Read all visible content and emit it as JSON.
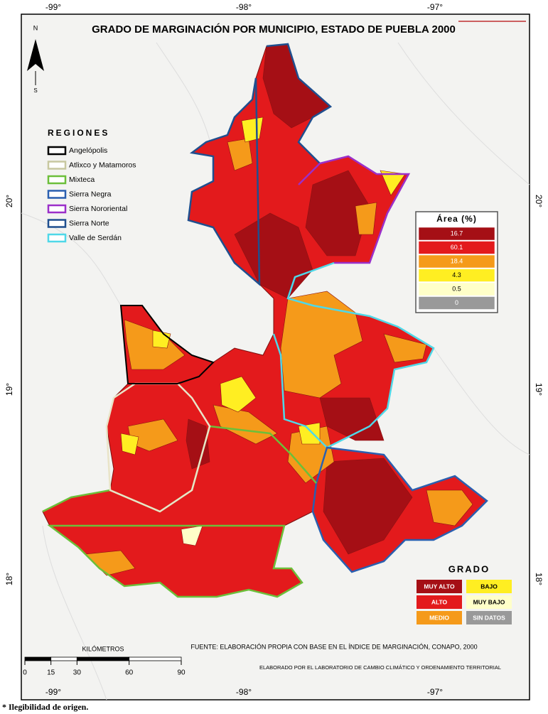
{
  "title": "GRADO DE MARGINACIÓN POR MUNICIPIO, ESTADO DE PUEBLA 2000",
  "compass": {
    "north": "N",
    "south": "S"
  },
  "longitude_labels": [
    "-99°",
    "-98°",
    "-97°"
  ],
  "latitude_labels": [
    "20°",
    "19°",
    "18°"
  ],
  "regions": {
    "title": "REGIONES",
    "items": [
      {
        "label": "Angelópolis",
        "color": "#000000"
      },
      {
        "label": "Atlixco y Matamoros",
        "color": "#c8c8a0"
      },
      {
        "label": "Mixteca",
        "color": "#6cbf3a"
      },
      {
        "label": "Sierra Negra",
        "color": "#2a5fb0"
      },
      {
        "label": "Sierra Nororiental",
        "color": "#9b2fc9"
      },
      {
        "label": "Sierra Norte",
        "color": "#1f4f8f"
      },
      {
        "label": "Valle de Serdán",
        "color": "#4fd8e8"
      }
    ]
  },
  "area_table": {
    "header": "Área (%)",
    "rows": [
      {
        "value": 16.7,
        "color": "#a50f15"
      },
      {
        "value": 60.1,
        "color": "#e31a1c"
      },
      {
        "value": 18.4,
        "color": "#f59a1a"
      },
      {
        "value": 4.3,
        "color": "#ffee22"
      },
      {
        "value": 0.5,
        "color": "#ffffc8"
      },
      {
        "value": 0,
        "color": "#999999"
      }
    ]
  },
  "grado": {
    "title": "GRADO",
    "items": [
      {
        "label": "MUY ALTO",
        "color": "#a50f15"
      },
      {
        "label": "BAJO",
        "color": "#ffee22"
      },
      {
        "label": "ALTO",
        "color": "#e31a1c"
      },
      {
        "label": "MUY BAJO",
        "color": "#ffffc8"
      },
      {
        "label": "MEDIO",
        "color": "#f59a1a"
      },
      {
        "label": "SIN DATOS",
        "color": "#999999"
      }
    ]
  },
  "scale_bar": {
    "title": "KILÓMETROS",
    "ticks": [
      0,
      15,
      30,
      60,
      90
    ]
  },
  "source": "FUENTE: ELABORACIÓN PROPIA CON BASE EN EL ÍNDICE DE MARGINACIÓN, CONAPO, 2000",
  "credit": "ELABORADO POR EL LABORATORIO DE CAMBIO CLIMÁTICO Y ORDENAMIENTO TERRITORIAL",
  "footnote": "* Ilegibilidad de origen."
}
